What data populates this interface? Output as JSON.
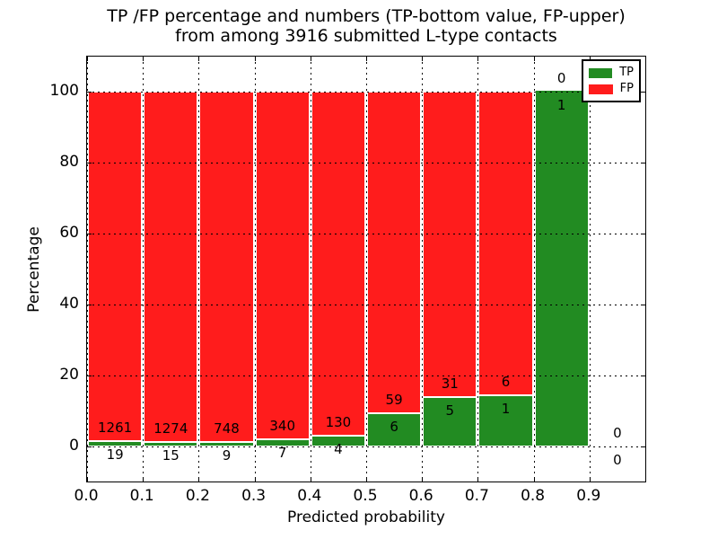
{
  "chart_data": {
    "type": "bar",
    "stacked": true,
    "percent_normalized": true,
    "title_lines": [
      "TP /FP percentage and numbers (TP-bottom value, FP-upper)",
      "from among 3916 submitted L-type contacts"
    ],
    "xlabel": "Predicted probability",
    "ylabel": "Percentage",
    "xlim": [
      0.0,
      1.0
    ],
    "ylim": [
      -10,
      110
    ],
    "xtick_labels": [
      "0.0",
      "0.1",
      "0.2",
      "0.3",
      "0.4",
      "0.5",
      "0.6",
      "0.7",
      "0.8",
      "0.9"
    ],
    "ytick_labels": [
      "0",
      "20",
      "40",
      "60",
      "80",
      "100"
    ],
    "grid": {
      "visible": true,
      "style": "dotted",
      "color": "#000000"
    },
    "total_submitted": 3916,
    "bins": [
      {
        "range": [
          0.0,
          0.1
        ],
        "tp": 19,
        "fp": 1261
      },
      {
        "range": [
          0.1,
          0.2
        ],
        "tp": 15,
        "fp": 1274
      },
      {
        "range": [
          0.2,
          0.3
        ],
        "tp": 9,
        "fp": 748
      },
      {
        "range": [
          0.3,
          0.4
        ],
        "tp": 7,
        "fp": 340
      },
      {
        "range": [
          0.4,
          0.5
        ],
        "tp": 4,
        "fp": 130
      },
      {
        "range": [
          0.5,
          0.6
        ],
        "tp": 6,
        "fp": 59
      },
      {
        "range": [
          0.6,
          0.7
        ],
        "tp": 5,
        "fp": 31
      },
      {
        "range": [
          0.7,
          0.8
        ],
        "tp": 1,
        "fp": 6
      },
      {
        "range": [
          0.8,
          0.9
        ],
        "tp": 1,
        "fp": 0
      },
      {
        "range": [
          0.9,
          1.0
        ],
        "tp": 0,
        "fp": 0
      }
    ],
    "legend": {
      "position": "upper right",
      "items": [
        {
          "label": "TP",
          "color": "#228B22"
        },
        {
          "label": "FP",
          "color": "#ff1c1c"
        }
      ]
    }
  },
  "colors": {
    "tp": "#228B22",
    "fp": "#ff1c1c",
    "background": "#ffffff",
    "frame": "#000000",
    "bar_edge": "#ffffff"
  }
}
